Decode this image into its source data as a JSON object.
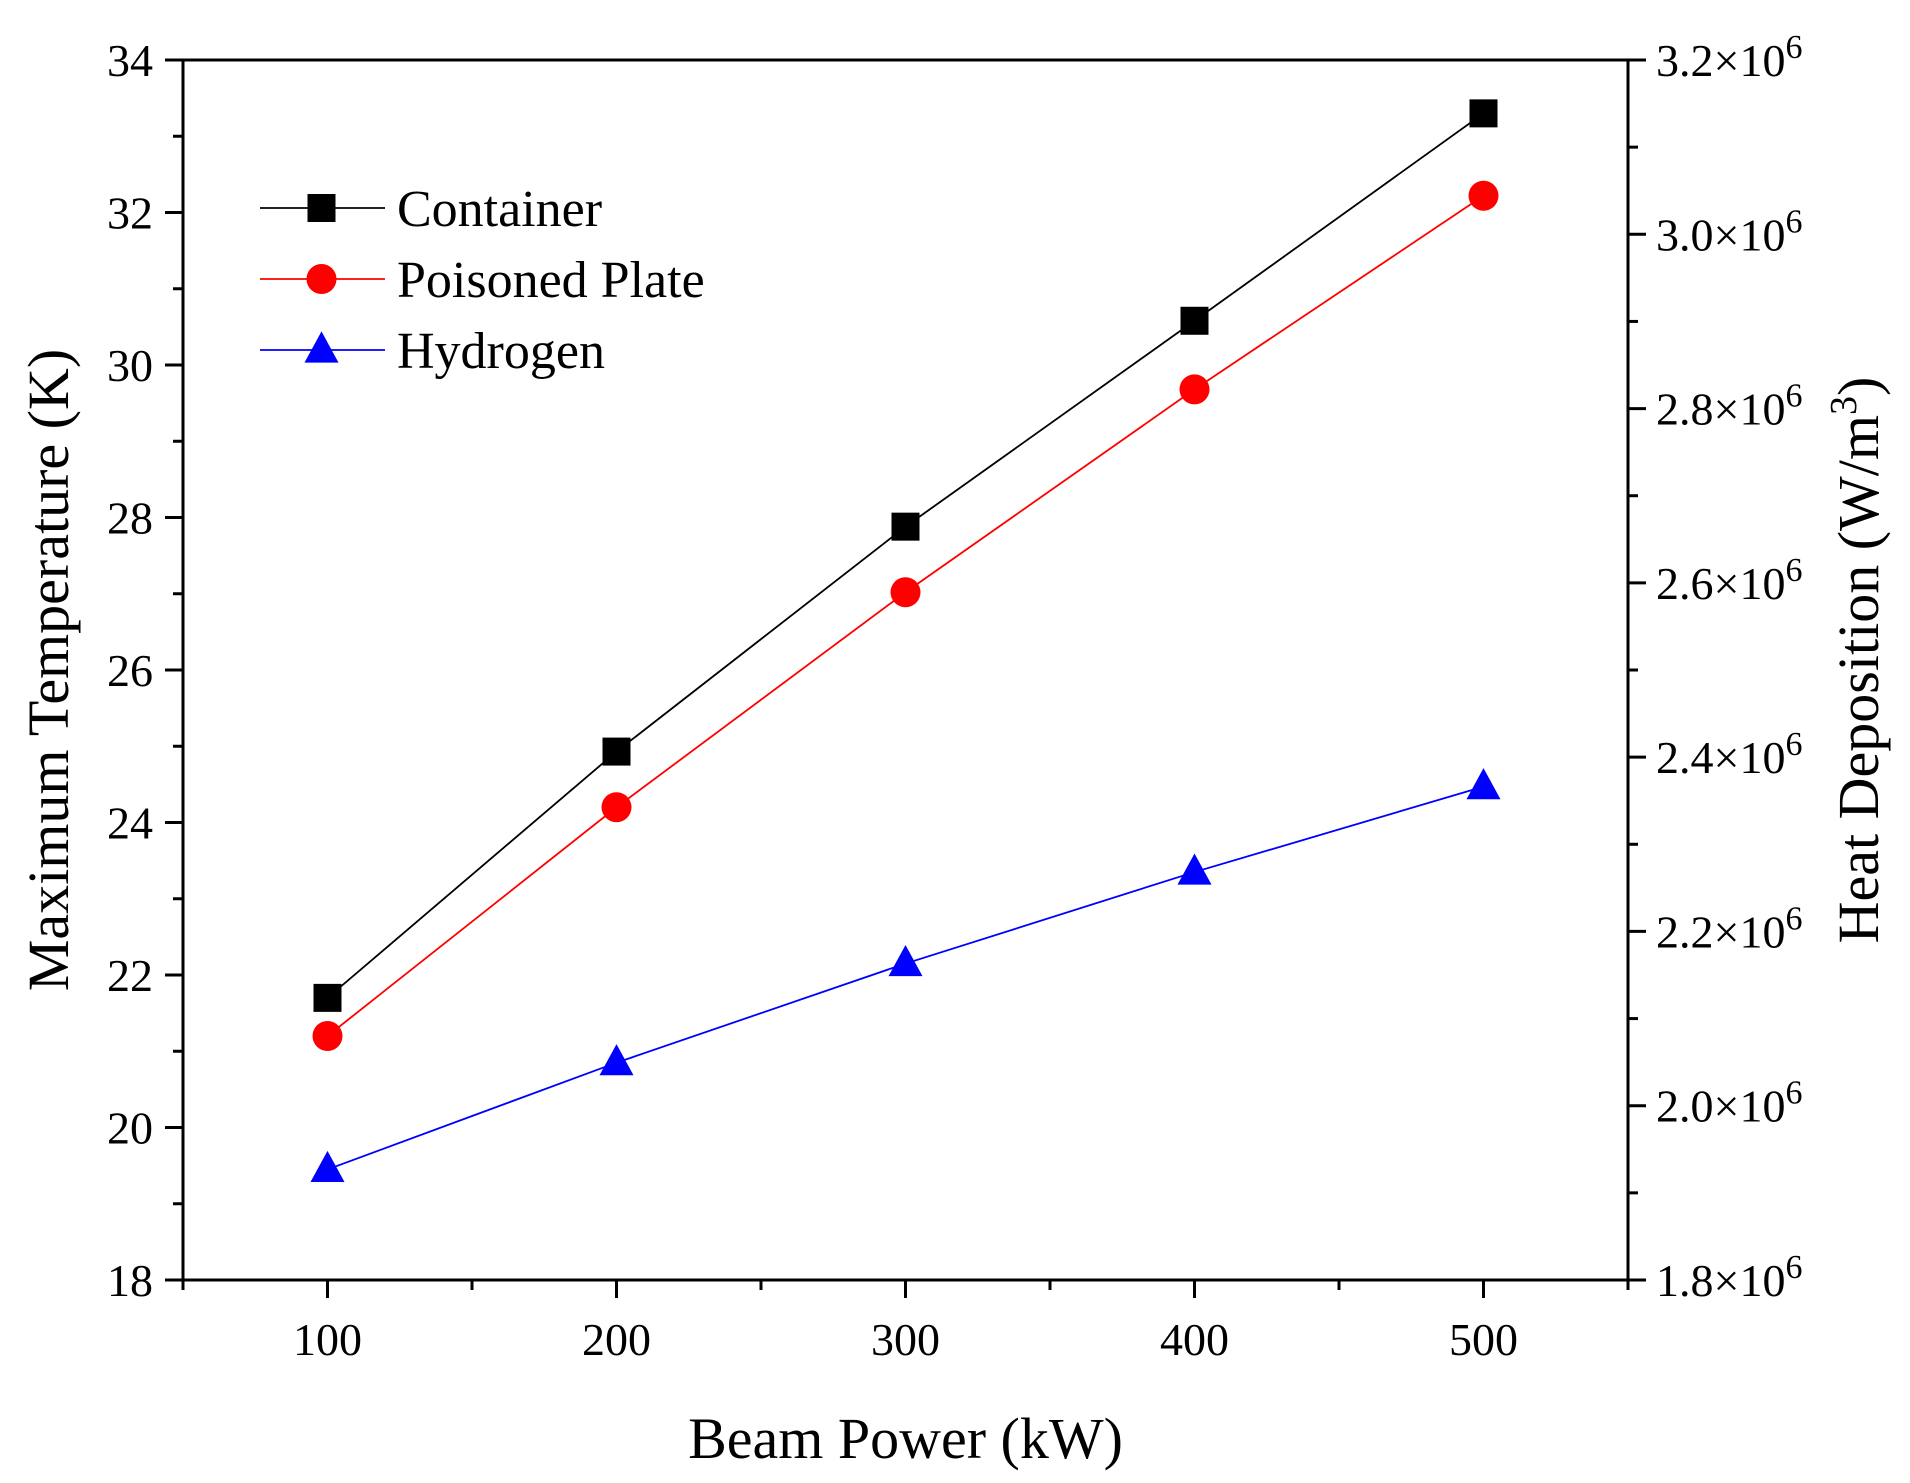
{
  "chart_data": {
    "type": "line",
    "title": "",
    "xlabel": "Beam Power (kW)",
    "ylabel": "Maximum Temperature (K)",
    "y2label": "Heat Deposition (W/m",
    "y2label_superscript": "3",
    "y2label_close": ")",
    "xlim": [
      50,
      550
    ],
    "ylim": [
      18,
      34
    ],
    "y2lim": [
      1800000,
      3200000
    ],
    "x_ticks": [
      100,
      200,
      300,
      400,
      500
    ],
    "x_tick_labels": [
      "100",
      "200",
      "300",
      "400",
      "500"
    ],
    "y_ticks": [
      18,
      20,
      22,
      24,
      26,
      28,
      30,
      32,
      34
    ],
    "y_tick_labels": [
      "18",
      "20",
      "22",
      "24",
      "26",
      "28",
      "30",
      "32",
      "34"
    ],
    "y2_ticks": [
      1800000,
      2000000,
      2200000,
      2400000,
      2600000,
      2800000,
      3000000,
      3200000
    ],
    "y2_tick_mantissas": [
      "1.8×10",
      "2.0×10",
      "2.2×10",
      "2.4×10",
      "2.6×10",
      "2.8×10",
      "3.0×10",
      "3.2×10"
    ],
    "y2_tick_exponent": "6",
    "grid": false,
    "legend_position": "top-left",
    "x": [
      100,
      200,
      300,
      400,
      500
    ],
    "series": [
      {
        "name": "Container",
        "axis": "left",
        "color": "#000000",
        "marker": "square",
        "values": [
          21.7,
          24.93,
          27.88,
          30.58,
          33.3
        ]
      },
      {
        "name": "Poisoned Plate",
        "axis": "left",
        "color": "#ff0000",
        "marker": "circle",
        "values": [
          21.2,
          24.2,
          27.02,
          29.68,
          32.22
        ]
      },
      {
        "name": "Hydrogen",
        "axis": "left",
        "color": "#0000ff",
        "marker": "triangle",
        "values": [
          19.45,
          20.85,
          22.15,
          23.35,
          24.47
        ]
      }
    ]
  }
}
